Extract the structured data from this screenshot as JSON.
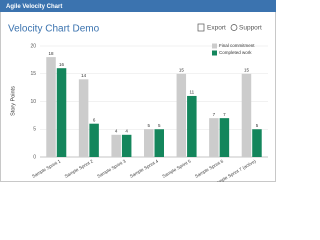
{
  "header": {
    "app_title": "Agile Velocity Chart",
    "heading": "Velocity Chart Demo",
    "export": "Export",
    "support": "Support"
  },
  "chart_data": {
    "type": "bar",
    "y_label": "Story Points",
    "categories": [
      "Sample Sprint 1",
      "Sample Sprint 2",
      "Sample Sprint 3",
      "Sample Sprint 4",
      "Sample Sprint 5",
      "Sample Sprint 6",
      "Sample Sprint 7 (active)"
    ],
    "series": [
      {
        "name": "Final commitment",
        "color": "#cccccc",
        "values": [
          18,
          14,
          4,
          5,
          15,
          7,
          15
        ]
      },
      {
        "name": "Completed work",
        "color": "#14865c",
        "values": [
          16,
          6,
          4,
          5,
          11,
          7,
          5
        ]
      }
    ],
    "ylim": [
      0,
      20
    ],
    "yticks": [
      0,
      5,
      10,
      15,
      20
    ],
    "grid": true,
    "legend": "top-right"
  }
}
